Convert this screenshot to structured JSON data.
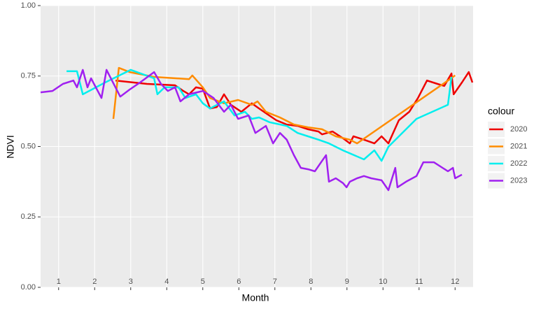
{
  "chart_data": {
    "type": "line",
    "x_label": "Month",
    "y_label": "NDVI",
    "legend_title": "colour",
    "xlim": [
      0.5,
      12.5
    ],
    "xticks": [
      1,
      2,
      3,
      4,
      5,
      6,
      7,
      8,
      9,
      10,
      11,
      12
    ],
    "ylim": [
      0,
      1
    ],
    "yticks": [
      {
        "value": 0,
        "label": "0.00"
      },
      {
        "value": 0.25,
        "label": "0.25"
      },
      {
        "value": 0.5,
        "label": "0.50"
      },
      {
        "value": 0.75,
        "label": "0.75"
      },
      {
        "value": 1,
        "label": "1.00"
      }
    ],
    "grid": true,
    "legend": "right",
    "series": [
      {
        "name": "2020",
        "color": "#ee0000",
        "x": [
          2.58,
          3.45,
          4.23,
          4.46,
          4.62,
          4.81,
          5.0,
          5.2,
          5.39,
          5.59,
          5.78,
          6.07,
          6.36,
          6.56,
          6.75,
          7.04,
          7.33,
          7.63,
          7.92,
          8.21,
          8.31,
          8.6,
          8.89,
          9.08,
          9.18,
          9.47,
          9.76,
          9.96,
          10.15,
          10.44,
          10.73,
          10.97,
          11.22,
          11.51,
          11.7,
          11.9,
          11.96,
          12.19,
          12.38,
          12.48
        ],
        "values": [
          0.734,
          0.722,
          0.717,
          0.697,
          0.685,
          0.71,
          0.705,
          0.635,
          0.64,
          0.685,
          0.648,
          0.623,
          0.653,
          0.635,
          0.618,
          0.593,
          0.578,
          0.573,
          0.561,
          0.553,
          0.543,
          0.553,
          0.529,
          0.511,
          0.536,
          0.524,
          0.511,
          0.536,
          0.511,
          0.593,
          0.623,
          0.672,
          0.734,
          0.722,
          0.715,
          0.759,
          0.685,
          0.727,
          0.764,
          0.727
        ]
      },
      {
        "name": "2021",
        "color": "#ff8c00",
        "x": [
          2.52,
          2.67,
          2.97,
          3.65,
          4.62,
          4.71,
          5.0,
          5.2,
          5.59,
          5.98,
          6.36,
          6.52,
          6.75,
          7.14,
          7.53,
          7.92,
          8.31,
          8.69,
          9.08,
          9.28,
          11.8,
          12.0
        ],
        "values": [
          0.598,
          0.779,
          0.764,
          0.747,
          0.739,
          0.752,
          0.71,
          0.672,
          0.653,
          0.665,
          0.648,
          0.66,
          0.623,
          0.603,
          0.578,
          0.568,
          0.561,
          0.536,
          0.524,
          0.511,
          0.734,
          0.752
        ]
      },
      {
        "name": "2022",
        "color": "#00eeee",
        "x": [
          1.22,
          1.51,
          1.67,
          2.29,
          3.0,
          3.65,
          3.74,
          3.94,
          4.33,
          4.52,
          4.81,
          5.0,
          5.2,
          5.59,
          5.88,
          6.17,
          6.36,
          6.56,
          6.85,
          7.33,
          7.63,
          7.92,
          8.21,
          8.5,
          8.89,
          9.47,
          9.76,
          9.96,
          10.15,
          10.93,
          11.8,
          11.9
        ],
        "values": [
          0.767,
          0.767,
          0.685,
          0.727,
          0.772,
          0.742,
          0.685,
          0.71,
          0.71,
          0.672,
          0.685,
          0.653,
          0.635,
          0.66,
          0.61,
          0.623,
          0.598,
          0.603,
          0.586,
          0.573,
          0.548,
          0.536,
          0.524,
          0.511,
          0.486,
          0.454,
          0.486,
          0.449,
          0.499,
          0.598,
          0.648,
          0.747
        ]
      },
      {
        "name": "2023",
        "color": "#a020f0",
        "x": [
          0.5,
          0.83,
          1.12,
          1.41,
          1.51,
          1.67,
          1.8,
          1.9,
          2.19,
          2.33,
          2.48,
          2.71,
          2.97,
          3.26,
          3.65,
          3.84,
          4.03,
          4.23,
          4.38,
          4.62,
          5.0,
          5.3,
          5.59,
          5.78,
          5.98,
          6.27,
          6.46,
          6.75,
          6.95,
          7.14,
          7.33,
          7.53,
          7.72,
          7.92,
          8.11,
          8.31,
          8.42,
          8.5,
          8.69,
          8.89,
          8.99,
          9.08,
          9.28,
          9.47,
          9.67,
          9.96,
          10.15,
          10.34,
          10.4,
          10.64,
          10.93,
          11.12,
          11.41,
          11.8,
          11.94,
          12.0,
          12.19
        ],
        "values": [
          0.692,
          0.697,
          0.722,
          0.734,
          0.71,
          0.772,
          0.71,
          0.742,
          0.672,
          0.772,
          0.734,
          0.677,
          0.702,
          0.727,
          0.764,
          0.722,
          0.697,
          0.71,
          0.66,
          0.685,
          0.697,
          0.672,
          0.623,
          0.648,
          0.598,
          0.61,
          0.548,
          0.573,
          0.511,
          0.548,
          0.524,
          0.469,
          0.424,
          0.419,
          0.412,
          0.449,
          0.469,
          0.375,
          0.387,
          0.37,
          0.355,
          0.375,
          0.387,
          0.395,
          0.387,
          0.38,
          0.345,
          0.424,
          0.355,
          0.375,
          0.395,
          0.444,
          0.444,
          0.412,
          0.424,
          0.387,
          0.4
        ]
      }
    ]
  }
}
